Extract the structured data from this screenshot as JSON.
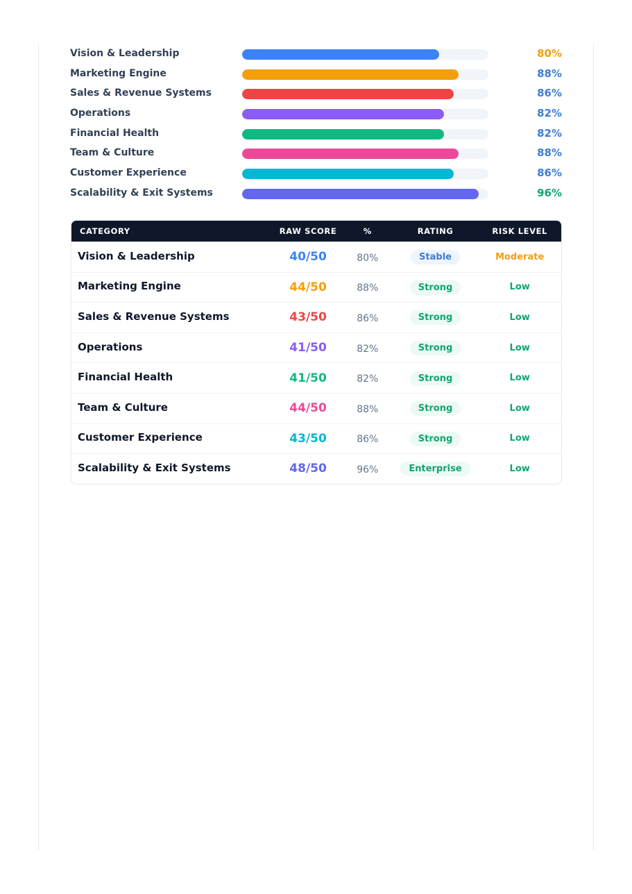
{
  "colors": {
    "blue": "#3b82f6",
    "orange": "#f59e0b",
    "red": "#ef4444",
    "purple": "#8b5cf6",
    "green": "#10b981",
    "pink": "#ec4899",
    "cyan": "#06b6d4",
    "indigo": "#6366f1",
    "pct_orange": "#f59e0b",
    "pct_blue": "#3b7dd8",
    "pct_green": "#10a56f",
    "risk_moderate": "#f59e0b",
    "risk_low": "#10a56f"
  },
  "bars": [
    {
      "label": "Vision & Leadership",
      "value": 80,
      "pct": "80%",
      "color": "#3b82f6",
      "pct_color": "#f59e0b"
    },
    {
      "label": "Marketing Engine",
      "value": 88,
      "pct": "88%",
      "color": "#f59e0b",
      "pct_color": "#3b7dd8"
    },
    {
      "label": "Sales & Revenue Systems",
      "value": 86,
      "pct": "86%",
      "color": "#ef4444",
      "pct_color": "#3b7dd8"
    },
    {
      "label": "Operations",
      "value": 82,
      "pct": "82%",
      "color": "#8b5cf6",
      "pct_color": "#3b7dd8"
    },
    {
      "label": "Financial Health",
      "value": 82,
      "pct": "82%",
      "color": "#10b981",
      "pct_color": "#3b7dd8"
    },
    {
      "label": "Team & Culture",
      "value": 88,
      "pct": "88%",
      "color": "#ec4899",
      "pct_color": "#3b7dd8"
    },
    {
      "label": "Customer Experience",
      "value": 86,
      "pct": "86%",
      "color": "#06b6d4",
      "pct_color": "#3b7dd8"
    },
    {
      "label": "Scalability & Exit Systems",
      "value": 96,
      "pct": "96%",
      "color": "#6366f1",
      "pct_color": "#10a56f"
    }
  ],
  "table": {
    "headers": {
      "category": "CATEGORY",
      "raw_score": "RAW SCORE",
      "percent": "%",
      "rating": "RATING",
      "risk_level": "RISK LEVEL"
    },
    "rows": [
      {
        "category": "Vision & Leadership",
        "raw": "40/50",
        "raw_color": "#3b82f6",
        "pct": "80%",
        "rating": "Stable",
        "rating_style": "stable",
        "risk": "Moderate",
        "risk_color": "#f59e0b"
      },
      {
        "category": "Marketing Engine",
        "raw": "44/50",
        "raw_color": "#f59e0b",
        "pct": "88%",
        "rating": "Strong",
        "rating_style": "strong",
        "risk": "Low",
        "risk_color": "#10a56f"
      },
      {
        "category": "Sales & Revenue Systems",
        "raw": "43/50",
        "raw_color": "#ef4444",
        "pct": "86%",
        "rating": "Strong",
        "rating_style": "strong",
        "risk": "Low",
        "risk_color": "#10a56f"
      },
      {
        "category": "Operations",
        "raw": "41/50",
        "raw_color": "#8b5cf6",
        "pct": "82%",
        "rating": "Strong",
        "rating_style": "strong",
        "risk": "Low",
        "risk_color": "#10a56f"
      },
      {
        "category": "Financial Health",
        "raw": "41/50",
        "raw_color": "#10b981",
        "pct": "82%",
        "rating": "Strong",
        "rating_style": "strong",
        "risk": "Low",
        "risk_color": "#10a56f"
      },
      {
        "category": "Team & Culture",
        "raw": "44/50",
        "raw_color": "#ec4899",
        "pct": "88%",
        "rating": "Strong",
        "rating_style": "strong",
        "risk": "Low",
        "risk_color": "#10a56f"
      },
      {
        "category": "Customer Experience",
        "raw": "43/50",
        "raw_color": "#06b6d4",
        "pct": "86%",
        "rating": "Strong",
        "rating_style": "strong",
        "risk": "Low",
        "risk_color": "#10a56f"
      },
      {
        "category": "Scalability & Exit Systems",
        "raw": "48/50",
        "raw_color": "#6366f1",
        "pct": "96%",
        "rating": "Enterprise",
        "rating_style": "enterprise",
        "risk": "Low",
        "risk_color": "#10a56f"
      }
    ]
  }
}
